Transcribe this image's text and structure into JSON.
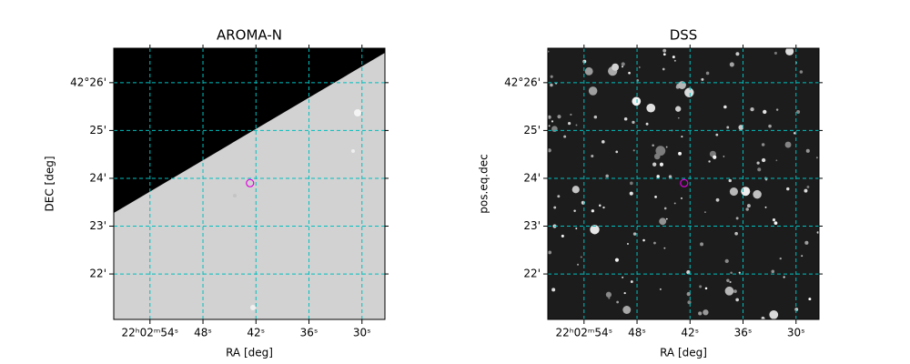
{
  "chart_data": [
    {
      "type": "image",
      "title": "AROMA-N",
      "x_label": "RA [deg]",
      "y_label": "DEC [deg]",
      "xlim": [
        58.1,
        27.4
      ],
      "ylim": [
        21.05,
        26.72
      ],
      "xticks": [
        {
          "value": 54,
          "label": "22ʰ02ᵐ54ˢ"
        },
        {
          "value": 48,
          "label": "48ˢ"
        },
        {
          "value": 42,
          "label": "42ˢ"
        },
        {
          "value": 36,
          "label": "36ˢ"
        },
        {
          "value": 30,
          "label": "30ˢ"
        }
      ],
      "yticks": [
        {
          "value": 26,
          "label": "42°26'"
        },
        {
          "value": 25,
          "label": "25'"
        },
        {
          "value": 24,
          "label": "24'"
        },
        {
          "value": 23,
          "label": "23'"
        },
        {
          "value": 22,
          "label": "22'"
        }
      ],
      "grid": true,
      "grid_color": "#00bfbf",
      "series": [
        {
          "x": [
            42.67
          ],
          "y": [
            23.9
          ],
          "color": "#e000e0"
        }
      ]
    },
    {
      "type": "image",
      "title": "DSS",
      "x_label": "RA [deg]",
      "y_label": "pos.eq.dec",
      "xlim": [
        58.1,
        27.4
      ],
      "ylim": [
        21.05,
        26.72
      ],
      "xticks": [
        {
          "value": 54,
          "label": "22ʰ02ᵐ54ˢ"
        },
        {
          "value": 48,
          "label": "48ˢ"
        },
        {
          "value": 42,
          "label": "42ˢ"
        },
        {
          "value": 36,
          "label": "36ˢ"
        },
        {
          "value": 30,
          "label": "30ˢ"
        }
      ],
      "yticks": [
        {
          "value": 26,
          "label": "42°26'"
        },
        {
          "value": 25,
          "label": "25'"
        },
        {
          "value": 24,
          "label": "24'"
        },
        {
          "value": 23,
          "label": "23'"
        },
        {
          "value": 22,
          "label": "22'"
        }
      ],
      "grid": true,
      "grid_color": "#00bfbf",
      "series": [
        {
          "x": [
            42.67
          ],
          "y": [
            23.9
          ],
          "color": "#e000e0"
        }
      ]
    }
  ]
}
